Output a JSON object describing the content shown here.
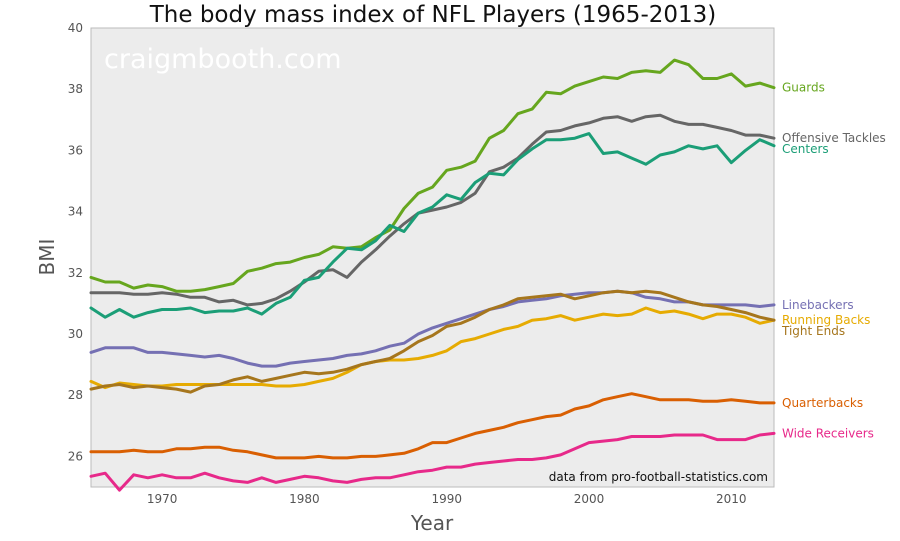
{
  "chart_data": {
    "type": "line",
    "title": "The body mass index of NFL Players (1965-2013)",
    "xlabel": "Year",
    "ylabel": "BMI",
    "xlim": [
      1965,
      2013
    ],
    "ylim": [
      25,
      40
    ],
    "x_ticks": [
      1970,
      1980,
      1990,
      2000,
      2010
    ],
    "y_ticks": [
      26,
      28,
      30,
      32,
      34,
      36,
      38,
      40
    ],
    "grid": false,
    "legend": "inline labels at right end of each line",
    "watermark": "craigmbooth.com",
    "source_note": "data from pro-football-statistics.com",
    "background": "#ececec",
    "x": [
      1965,
      1966,
      1967,
      1968,
      1969,
      1970,
      1971,
      1972,
      1973,
      1974,
      1975,
      1976,
      1977,
      1978,
      1979,
      1980,
      1981,
      1982,
      1983,
      1984,
      1985,
      1986,
      1987,
      1988,
      1989,
      1990,
      1991,
      1992,
      1993,
      1994,
      1995,
      1996,
      1997,
      1998,
      1999,
      2000,
      2001,
      2002,
      2003,
      2004,
      2005,
      2006,
      2007,
      2008,
      2009,
      2010,
      2011,
      2012,
      2013
    ],
    "series": [
      {
        "name": "Guards",
        "color": "#66a61e",
        "values": [
          31.85,
          31.7,
          31.7,
          31.5,
          31.6,
          31.55,
          31.4,
          31.4,
          31.45,
          31.55,
          31.65,
          32.05,
          32.15,
          32.3,
          32.35,
          32.5,
          32.6,
          32.85,
          32.8,
          32.85,
          33.15,
          33.4,
          34.1,
          34.6,
          34.8,
          35.35,
          35.45,
          35.65,
          36.4,
          36.65,
          37.2,
          37.35,
          37.9,
          37.85,
          38.1,
          38.25,
          38.4,
          38.35,
          38.55,
          38.6,
          38.55,
          38.95,
          38.8,
          38.35,
          38.35,
          38.5,
          38.1,
          38.2,
          38.05
        ]
      },
      {
        "name": "Offensive Tackles",
        "color": "#666666",
        "values": [
          31.35,
          31.35,
          31.35,
          31.3,
          31.3,
          31.35,
          31.3,
          31.2,
          31.2,
          31.05,
          31.1,
          30.95,
          31.0,
          31.15,
          31.4,
          31.7,
          32.05,
          32.1,
          31.85,
          32.35,
          32.75,
          33.2,
          33.6,
          33.95,
          34.05,
          34.15,
          34.3,
          34.6,
          35.3,
          35.45,
          35.75,
          36.2,
          36.6,
          36.65,
          36.8,
          36.9,
          37.05,
          37.1,
          36.95,
          37.1,
          37.15,
          36.95,
          36.85,
          36.85,
          36.75,
          36.65,
          36.5,
          36.5,
          36.4
        ]
      },
      {
        "name": "Centers",
        "color": "#1b9e77",
        "values": [
          30.85,
          30.55,
          30.8,
          30.55,
          30.7,
          30.8,
          30.8,
          30.85,
          30.7,
          30.75,
          30.75,
          30.85,
          30.65,
          31.0,
          31.2,
          31.75,
          31.85,
          32.35,
          32.8,
          32.75,
          33.05,
          33.55,
          33.35,
          33.95,
          34.15,
          34.55,
          34.4,
          34.95,
          35.25,
          35.2,
          35.7,
          36.05,
          36.35,
          36.35,
          36.4,
          36.55,
          35.9,
          35.95,
          35.75,
          35.55,
          35.85,
          35.95,
          36.15,
          36.05,
          36.15,
          35.6,
          36.0,
          36.35,
          36.15
        ]
      },
      {
        "name": "Linebackers",
        "color": "#7570b3",
        "values": [
          29.4,
          29.55,
          29.55,
          29.55,
          29.4,
          29.4,
          29.35,
          29.3,
          29.25,
          29.3,
          29.2,
          29.05,
          28.95,
          28.95,
          29.05,
          29.1,
          29.15,
          29.2,
          29.3,
          29.35,
          29.45,
          29.6,
          29.7,
          30.0,
          30.2,
          30.35,
          30.5,
          30.65,
          30.8,
          30.9,
          31.05,
          31.1,
          31.15,
          31.25,
          31.3,
          31.35,
          31.35,
          31.4,
          31.35,
          31.2,
          31.15,
          31.05,
          31.05,
          30.95,
          30.95,
          30.95,
          30.95,
          30.9,
          30.95
        ]
      },
      {
        "name": "Running Backs",
        "color": "#e6ab02",
        "values": [
          28.45,
          28.25,
          28.4,
          28.35,
          28.3,
          28.3,
          28.35,
          28.35,
          28.35,
          28.35,
          28.35,
          28.35,
          28.35,
          28.3,
          28.3,
          28.35,
          28.45,
          28.55,
          28.75,
          29.0,
          29.1,
          29.15,
          29.15,
          29.2,
          29.3,
          29.45,
          29.75,
          29.85,
          30.0,
          30.15,
          30.25,
          30.45,
          30.5,
          30.6,
          30.45,
          30.55,
          30.65,
          30.6,
          30.65,
          30.85,
          30.7,
          30.75,
          30.65,
          30.5,
          30.65,
          30.65,
          30.55,
          30.35,
          30.45
        ]
      },
      {
        "name": "Tight Ends",
        "color": "#a6761d",
        "values": [
          28.2,
          28.3,
          28.35,
          28.25,
          28.3,
          28.25,
          28.2,
          28.1,
          28.3,
          28.35,
          28.5,
          28.6,
          28.45,
          28.55,
          28.65,
          28.75,
          28.7,
          28.75,
          28.85,
          29.0,
          29.1,
          29.2,
          29.45,
          29.75,
          29.95,
          30.25,
          30.35,
          30.55,
          30.8,
          30.95,
          31.15,
          31.2,
          31.25,
          31.3,
          31.15,
          31.25,
          31.35,
          31.4,
          31.35,
          31.4,
          31.35,
          31.2,
          31.05,
          30.95,
          30.9,
          30.8,
          30.7,
          30.55,
          30.45
        ]
      },
      {
        "name": "Quarterbacks",
        "color": "#d95f02",
        "values": [
          26.15,
          26.15,
          26.15,
          26.2,
          26.15,
          26.15,
          26.25,
          26.25,
          26.3,
          26.3,
          26.2,
          26.15,
          26.05,
          25.95,
          25.95,
          25.95,
          26.0,
          25.95,
          25.95,
          26.0,
          26.0,
          26.05,
          26.1,
          26.25,
          26.45,
          26.45,
          26.6,
          26.75,
          26.85,
          26.95,
          27.1,
          27.2,
          27.3,
          27.35,
          27.55,
          27.65,
          27.85,
          27.95,
          28.05,
          27.95,
          27.85,
          27.85,
          27.85,
          27.8,
          27.8,
          27.85,
          27.8,
          27.75,
          27.75
        ]
      },
      {
        "name": "Wide Receivers",
        "color": "#e7298a",
        "values": [
          25.35,
          25.45,
          24.9,
          25.4,
          25.3,
          25.4,
          25.3,
          25.3,
          25.45,
          25.3,
          25.2,
          25.15,
          25.3,
          25.15,
          25.25,
          25.35,
          25.3,
          25.2,
          25.15,
          25.25,
          25.3,
          25.3,
          25.4,
          25.5,
          25.55,
          25.65,
          25.65,
          25.75,
          25.8,
          25.85,
          25.9,
          25.9,
          25.95,
          26.05,
          26.25,
          26.45,
          26.5,
          26.55,
          26.65,
          26.65,
          26.65,
          26.7,
          26.7,
          26.7,
          26.55,
          26.55,
          26.55,
          26.7,
          26.75
        ]
      }
    ]
  }
}
